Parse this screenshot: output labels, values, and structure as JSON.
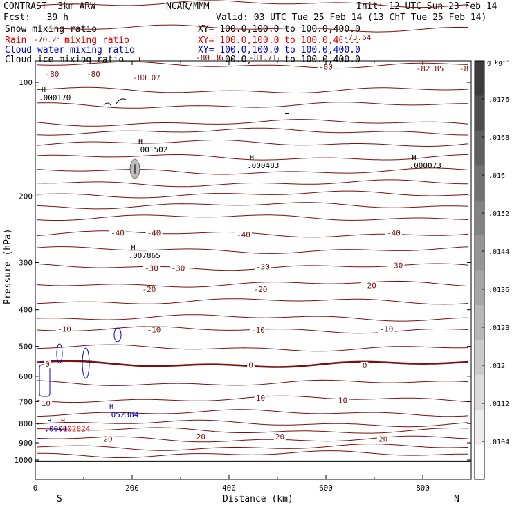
{
  "header": {
    "model": "CONTRAST  3km ARW",
    "org": "NCAR/MMM",
    "init": "Init: 12 UTC Sun 23 Feb 14",
    "fcst": "Fcst:   39 h",
    "valid": "Valid: 03 UTC Tue 25 Feb 14 (13 ChT Tue 25 Feb 14)",
    "fields": [
      {
        "label": "Snow mixing ratio",
        "xy": "XY= 100.0,100.0 to 100.0,400.0",
        "color": "#000000"
      },
      {
        "label": "Rain water mixing ratio",
        "xy": "XY= 100.0,100.0 to 100.0,400.0",
        "color": "#e00000"
      },
      {
        "label": "Cloud water mixing ratio",
        "xy": "XY= 100.0,100.0 to 100.0,400.0",
        "color": "#0000cc"
      },
      {
        "label": "Cloud ice mixing ratio",
        "xy": "XY= 100.0,100.0 to 100.0,400.0",
        "color": "#000000"
      }
    ]
  },
  "chart_data": {
    "type": "contour cross-section",
    "xlabel": "Distance (km)",
    "ylabel": "Pressure (hPa)",
    "xlim": [
      0,
      900
    ],
    "ylim": [
      1000,
      50
    ],
    "y_scale": "log",
    "x_ticks": [
      0,
      200,
      400,
      600,
      800
    ],
    "y_ticks": [
      100,
      200,
      300,
      400,
      500,
      600,
      700,
      800,
      900,
      1000
    ],
    "x_end_labels": {
      "left": "S",
      "right": "N"
    },
    "colorbar": {
      "unit": "g kg⁻¹",
      "ticks": [
        ".0176",
        ".0168",
        ".016",
        ".0152",
        ".0144",
        ".0136",
        ".0128",
        ".012",
        ".0112",
        ".0104"
      ]
    },
    "temperature_contour_labels": [
      {
        "text": "-70.2",
        "x": 20,
        "p": 77
      },
      {
        "text": "-80",
        "x": 35,
        "p": 95
      },
      {
        "text": "-80",
        "x": 120,
        "p": 95
      },
      {
        "text": "-80.07",
        "x": 230,
        "p": 97
      },
      {
        "text": "-80.36",
        "x": 360,
        "p": 86
      },
      {
        "text": "-81.71",
        "x": 470,
        "p": 86
      },
      {
        "text": "-73.64",
        "x": 665,
        "p": 76
      },
      {
        "text": "-80",
        "x": 600,
        "p": 91
      },
      {
        "text": "-82.85",
        "x": 815,
        "p": 92
      },
      {
        "text": "-8",
        "x": 885,
        "p": 92
      },
      {
        "text": "-40",
        "x": 170,
        "p": 250
      },
      {
        "text": "-40",
        "x": 245,
        "p": 250
      },
      {
        "text": "-40",
        "x": 430,
        "p": 253
      },
      {
        "text": "-40",
        "x": 740,
        "p": 250
      },
      {
        "text": "-30",
        "x": 240,
        "p": 310
      },
      {
        "text": "-30",
        "x": 295,
        "p": 310
      },
      {
        "text": "-30",
        "x": 470,
        "p": 308
      },
      {
        "text": "-30",
        "x": 745,
        "p": 305
      },
      {
        "text": "-20",
        "x": 235,
        "p": 353
      },
      {
        "text": "-20",
        "x": 465,
        "p": 353
      },
      {
        "text": "-20",
        "x": 690,
        "p": 345
      },
      {
        "text": "-10",
        "x": 60,
        "p": 450
      },
      {
        "text": "-10",
        "x": 245,
        "p": 452
      },
      {
        "text": "-10",
        "x": 460,
        "p": 453
      },
      {
        "text": "-10",
        "x": 725,
        "p": 450
      },
      {
        "text": "0",
        "x": 25,
        "p": 557
      },
      {
        "text": "0",
        "x": 445,
        "p": 560
      },
      {
        "text": "0",
        "x": 680,
        "p": 561
      },
      {
        "text": "10",
        "x": 22,
        "p": 707
      },
      {
        "text": "10",
        "x": 465,
        "p": 684
      },
      {
        "text": "10",
        "x": 635,
        "p": 695
      },
      {
        "text": "20",
        "x": 150,
        "p": 879
      },
      {
        "text": "20",
        "x": 342,
        "p": 866
      },
      {
        "text": "20",
        "x": 505,
        "p": 866
      },
      {
        "text": "20",
        "x": 718,
        "p": 880
      }
    ],
    "temperature_contours_p": [
      55,
      62,
      72,
      90,
      105,
      115,
      128,
      135,
      145,
      158,
      172,
      185,
      198,
      212,
      228,
      252,
      278,
      308,
      342,
      380,
      420,
      452,
      505,
      557,
      625,
      690,
      750,
      800,
      835,
      880,
      925,
      965
    ],
    "freezing_level_p": 557,
    "extrema": [
      {
        "kind": "H",
        "value": ".000170",
        "x": 10,
        "p": 108,
        "color": "#000000"
      },
      {
        "kind": "L",
        "value": "",
        "x": 210,
        "p": 90,
        "color": "#8b0000"
      },
      {
        "kind": "H",
        "value": ".001502",
        "x": 210,
        "p": 148,
        "color": "#000000"
      },
      {
        "kind": "H",
        "value": ".000483",
        "x": 440,
        "p": 163,
        "color": "#000000"
      },
      {
        "kind": "H",
        "value": ".000073",
        "x": 775,
        "p": 163,
        "color": "#000000"
      },
      {
        "kind": "H",
        "value": ".007865",
        "x": 195,
        "p": 282,
        "color": "#000000"
      },
      {
        "kind": "H",
        "value": ".052384",
        "x": 150,
        "p": 745,
        "color": "#0000cc"
      },
      {
        "kind": "H",
        "value": ".0001",
        "x": 22,
        "p": 812,
        "color": "#0000cc"
      },
      {
        "kind": "H",
        "value": ".002824",
        "x": 50,
        "p": 812,
        "color": "#e00000"
      }
    ]
  }
}
